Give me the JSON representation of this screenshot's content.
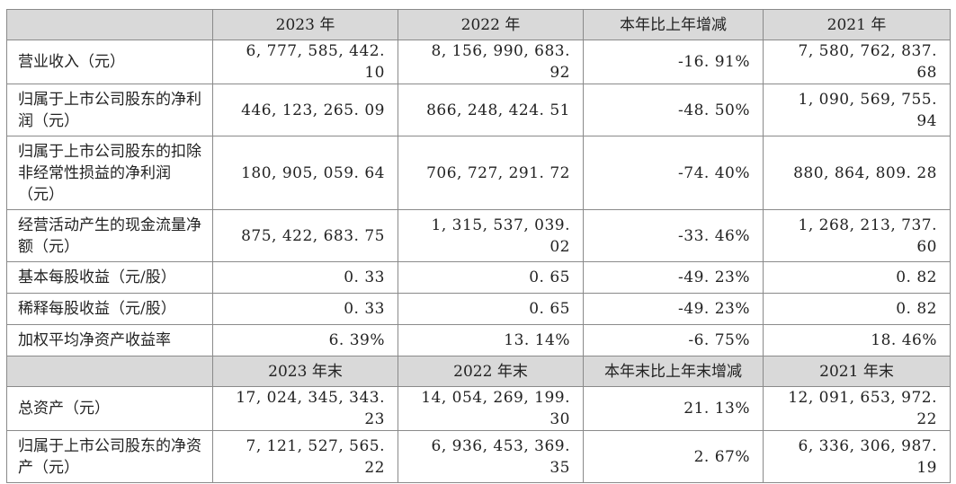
{
  "header1": [
    "",
    "2023 年",
    "2022 年",
    "本年比上年增减",
    "2021 年"
  ],
  "rows1": [
    {
      "label": "营业收入（元）",
      "values": [
        "6, 777, 585, 442. 10",
        "8, 156, 990, 683. 92",
        "-16. 91%",
        "7, 580, 762, 837. 68"
      ]
    },
    {
      "label": "归属于上市公司股东的净利润（元）",
      "values": [
        "446, 123, 265. 09",
        "866, 248, 424. 51",
        "-48. 50%",
        "1, 090, 569, 755. 94"
      ]
    },
    {
      "label": "归属于上市公司股东的扣除非经常性损益的净利润（元）",
      "values": [
        "180, 905, 059. 64",
        "706, 727, 291. 72",
        "-74. 40%",
        "880, 864, 809. 28"
      ]
    },
    {
      "label": "经营活动产生的现金流量净额（元）",
      "values": [
        "875, 422, 683. 75",
        "1, 315, 537, 039. 02",
        "-33. 46%",
        "1, 268, 213, 737. 60"
      ]
    },
    {
      "label": "基本每股收益（元/股）",
      "values": [
        "0. 33",
        "0. 65",
        "-49. 23%",
        "0. 82"
      ]
    },
    {
      "label": "稀释每股收益（元/股）",
      "values": [
        "0. 33",
        "0. 65",
        "-49. 23%",
        "0. 82"
      ]
    },
    {
      "label": "加权平均净资产收益率",
      "values": [
        "6. 39%",
        "13. 14%",
        "-6. 75%",
        "18. 46%"
      ]
    }
  ],
  "header2": [
    "",
    "2023 年末",
    "2022 年末",
    "本年末比上年末增减",
    "2021 年末"
  ],
  "rows2": [
    {
      "label": "总资产（元）",
      "values": [
        "17, 024, 345, 343. 23",
        "14, 054, 269, 199. 30",
        "21. 13%",
        "12, 091, 653, 972. 22"
      ]
    },
    {
      "label": "归属于上市公司股东的净资产（元）",
      "values": [
        "7, 121, 527, 565. 22",
        "6, 936, 453, 369. 35",
        "2. 67%",
        "6, 336, 306, 987. 19"
      ]
    }
  ]
}
